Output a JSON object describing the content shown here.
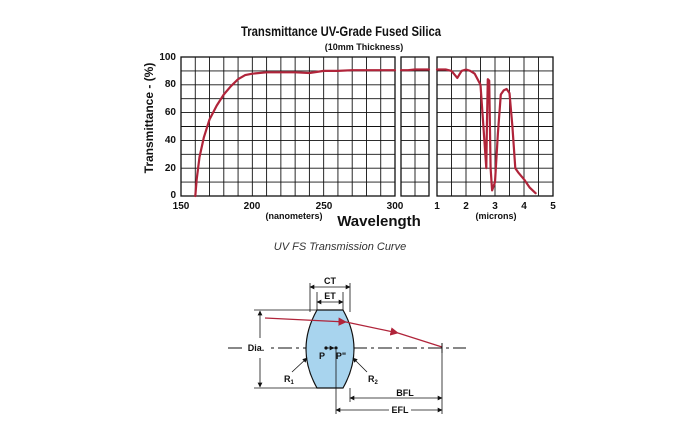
{
  "chart_data": {
    "type": "line",
    "title": "Transmittance UV-Grade Fused Silica",
    "subtitle": "(10mm Thickness)",
    "ylabel": "Transmittance - (%)",
    "xlabel": "Wavelength",
    "ylim": [
      0,
      100
    ],
    "yticks": [
      "0",
      "20",
      "40",
      "60",
      "80",
      "100"
    ],
    "grid": true,
    "color": "#b0243a",
    "panels": [
      {
        "id": "uv",
        "unit_label": "(nanometers)",
        "xlim": [
          150,
          300
        ],
        "xticks": [
          {
            "value": 150,
            "label": "150"
          },
          {
            "value": 200,
            "label": "200"
          },
          {
            "value": 250,
            "label": "250"
          },
          {
            "value": 300,
            "label": "300"
          }
        ],
        "x": [
          160,
          161,
          163,
          166,
          170,
          175,
          180,
          185,
          190,
          195,
          200,
          210,
          220,
          230,
          240,
          250,
          260,
          270,
          280,
          290,
          300
        ],
        "y": [
          0,
          12,
          28,
          42,
          55,
          65,
          73,
          79,
          84,
          87,
          88,
          89,
          89,
          89,
          88.5,
          90,
          90,
          90.5,
          90.5,
          90.5,
          90.5
        ]
      },
      {
        "id": "vis",
        "unit_label": "",
        "xlim": [
          0,
          1
        ],
        "xticks": [],
        "x": [
          0,
          0.25,
          0.5,
          0.75,
          1
        ],
        "y": [
          90.5,
          90.5,
          91,
          91,
          91
        ]
      },
      {
        "id": "ir",
        "unit_label": "(microns)",
        "xlim": [
          1,
          5
        ],
        "xticks": [
          {
            "value": 1,
            "label": "1"
          },
          {
            "value": 2,
            "label": "2"
          },
          {
            "value": 3,
            "label": "3"
          },
          {
            "value": 4,
            "label": "4"
          },
          {
            "value": 5,
            "label": "5"
          }
        ],
        "x": [
          1,
          1.3,
          1.5,
          1.7,
          1.85,
          2.0,
          2.15,
          2.3,
          2.5,
          2.7,
          2.72,
          2.75,
          2.8,
          2.85,
          2.9,
          3.0,
          3.1,
          3.2,
          3.3,
          3.4,
          3.5,
          3.6,
          3.7,
          3.8,
          4.0,
          4.2,
          4.4
        ],
        "y": [
          91,
          91,
          90,
          85,
          90,
          91,
          90,
          88,
          80,
          20,
          50,
          84,
          83,
          20,
          4,
          10,
          45,
          73,
          76,
          77,
          74,
          50,
          20,
          17,
          12,
          6,
          2
        ]
      }
    ]
  },
  "caption": "UV FS Transmission Curve",
  "diagram": {
    "ct_label": "CT",
    "et_label": "ET",
    "dia_label": "Dia.",
    "p_label": "P",
    "p2_label": "P\"",
    "r1_label": "R",
    "r1_sub": "1",
    "r2_label": "R",
    "r2_sub": "2",
    "bfl_label": "BFL",
    "efl_label": "EFL"
  }
}
